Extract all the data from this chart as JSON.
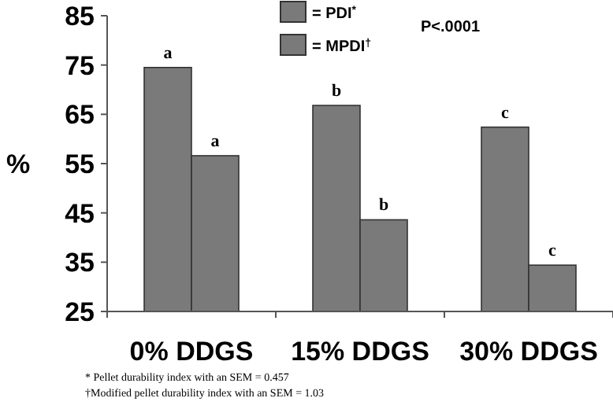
{
  "chart_data": {
    "type": "bar",
    "ylabel": "%",
    "categories": [
      "0% DDGS",
      "15% DDGS",
      "30% DDGS"
    ],
    "series": [
      {
        "name": "= PDI$^{*}$",
        "color": "#7a7a7a",
        "values": [
          74.5,
          66.8,
          62.4
        ]
      },
      {
        "name": "= MPDI$^{†}$",
        "color": "#7a7a7a",
        "values": [
          56.6,
          43.6,
          34.4
        ]
      }
    ],
    "ylim": [
      25,
      85
    ],
    "yticks": [
      25,
      35,
      45,
      55,
      65,
      75,
      85
    ],
    "grid": false,
    "legend": "top",
    "annotations": [
      {
        "text": "a",
        "x": "0% DDGS",
        "y": 74.5
      },
      {
        "text": "a",
        "x": "0% DDGS",
        "y": 56.6
      },
      {
        "text": "b",
        "x": "15% DDGS",
        "y": 66.8
      },
      {
        "text": "b",
        "x": "15% DDGS",
        "y": 43.6
      },
      {
        "text": "c",
        "x": "30% DDGS",
        "y": 62.4
      },
      {
        "text": "c",
        "x": "30% DDGS",
        "y": 34.4
      },
      "P<.0001",
      "* Pellet durability index with an SEM = 0.457",
      "†Modified pellet durability index with an SEM = 1.03"
    ]
  }
}
